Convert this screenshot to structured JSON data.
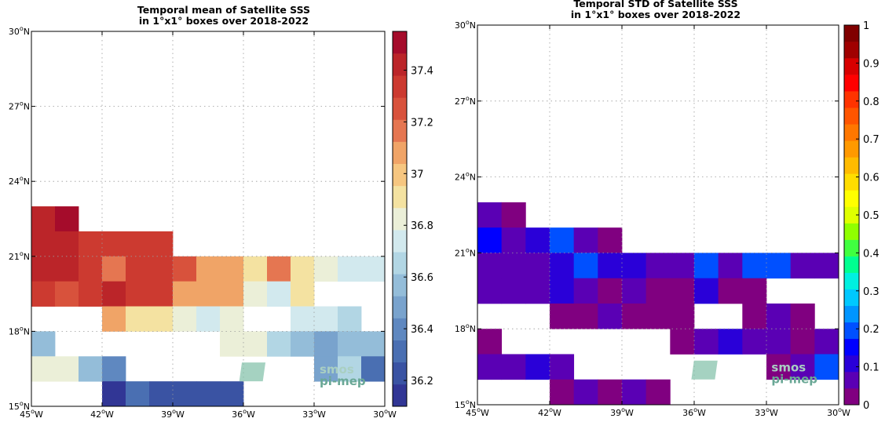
{
  "chart_data": [
    {
      "type": "heatmap",
      "title_lines": [
        "Temporal mean of Satellite SSS",
        "in 1°x1° boxes over 2018-2022"
      ],
      "x_ticks": [
        {
          "value": -45,
          "label": "45°W"
        },
        {
          "value": -42,
          "label": "42°W"
        },
        {
          "value": -39,
          "label": "39°W"
        },
        {
          "value": -36,
          "label": "36°W"
        },
        {
          "value": -33,
          "label": "33°W"
        },
        {
          "value": -30,
          "label": "30°W"
        }
      ],
      "y_ticks": [
        {
          "value": 15,
          "label": "15°N"
        },
        {
          "value": 18,
          "label": "18°N"
        },
        {
          "value": 21,
          "label": "21°N"
        },
        {
          "value": 24,
          "label": "24°N"
        },
        {
          "value": 27,
          "label": "27°N"
        },
        {
          "value": 30,
          "label": "30°N"
        }
      ],
      "xlim": [
        -45,
        -30
      ],
      "ylim": [
        15,
        30
      ],
      "colorbar": {
        "vmin": 36.1,
        "vmax": 37.55,
        "ticks": [
          36.2,
          36.4,
          36.6,
          36.8,
          37,
          37.2,
          37.4
        ],
        "tick_labels": [
          "36.2",
          "36.4",
          "36.6",
          "36.8",
          "37",
          "37.2",
          "37.4"
        ],
        "colors": [
          "#313695",
          "#3a53a3",
          "#4a6fb2",
          "#5f88c0",
          "#79a3cd",
          "#94bdd9",
          "#b2d6e4",
          "#d2e9ee",
          "#ebefd8",
          "#f4e2a1",
          "#f6c680",
          "#f0a467",
          "#e57651",
          "#d8523c",
          "#cc3a30",
          "#bb2529",
          "#a50c2b"
        ]
      },
      "grid": true,
      "cells": [
        {
          "lon": -45,
          "lat": 22,
          "value": 37.45
        },
        {
          "lon": -44,
          "lat": 22,
          "value": 37.5
        },
        {
          "lon": -45,
          "lat": 21,
          "value": 37.4
        },
        {
          "lon": -44,
          "lat": 21,
          "value": 37.45
        },
        {
          "lon": -43,
          "lat": 21,
          "value": 37.35
        },
        {
          "lon": -42,
          "lat": 21,
          "value": 37.35
        },
        {
          "lon": -41,
          "lat": 21,
          "value": 37.3
        },
        {
          "lon": -40,
          "lat": 21,
          "value": 37.3
        },
        {
          "lon": -45,
          "lat": 20,
          "value": 37.45
        },
        {
          "lon": -44,
          "lat": 20,
          "value": 37.4
        },
        {
          "lon": -43,
          "lat": 20,
          "value": 37.3
        },
        {
          "lon": -42,
          "lat": 20,
          "value": 37.2
        },
        {
          "lon": -41,
          "lat": 20,
          "value": 37.3
        },
        {
          "lon": -40,
          "lat": 20,
          "value": 37.3
        },
        {
          "lon": -39,
          "lat": 20,
          "value": 37.25
        },
        {
          "lon": -38,
          "lat": 20,
          "value": 37.12
        },
        {
          "lon": -37,
          "lat": 20,
          "value": 37.05
        },
        {
          "lon": -36,
          "lat": 20,
          "value": 36.95
        },
        {
          "lon": -35,
          "lat": 20,
          "value": 37.15
        },
        {
          "lon": -34,
          "lat": 20,
          "value": 36.95
        },
        {
          "lon": -33,
          "lat": 20,
          "value": 36.85
        },
        {
          "lon": -32,
          "lat": 20,
          "value": 36.75
        },
        {
          "lon": -31,
          "lat": 20,
          "value": 36.75
        },
        {
          "lon": -45,
          "lat": 19,
          "value": 37.3
        },
        {
          "lon": -44,
          "lat": 19,
          "value": 37.25
        },
        {
          "lon": -43,
          "lat": 19,
          "value": 37.3
        },
        {
          "lon": -42,
          "lat": 19,
          "value": 37.45
        },
        {
          "lon": -41,
          "lat": 19,
          "value": 37.35
        },
        {
          "lon": -40,
          "lat": 19,
          "value": 37.3
        },
        {
          "lon": -39,
          "lat": 19,
          "value": 37.05
        },
        {
          "lon": -38,
          "lat": 19,
          "value": 37.05
        },
        {
          "lon": -37,
          "lat": 19,
          "value": 37.05
        },
        {
          "lon": -36,
          "lat": 19,
          "value": 36.85
        },
        {
          "lon": -35,
          "lat": 19,
          "value": 36.75
        },
        {
          "lon": -34,
          "lat": 19,
          "value": 36.95
        },
        {
          "lon": -42,
          "lat": 18,
          "value": 37.05
        },
        {
          "lon": -41,
          "lat": 18,
          "value": 36.95
        },
        {
          "lon": -40,
          "lat": 18,
          "value": 36.9
        },
        {
          "lon": -39,
          "lat": 18,
          "value": 36.85
        },
        {
          "lon": -38,
          "lat": 18,
          "value": 36.75
        },
        {
          "lon": -37,
          "lat": 18,
          "value": 36.85
        },
        {
          "lon": -34,
          "lat": 18,
          "value": 36.75
        },
        {
          "lon": -33,
          "lat": 18,
          "value": 36.75
        },
        {
          "lon": -32,
          "lat": 18,
          "value": 36.65
        },
        {
          "lon": -45,
          "lat": 17,
          "value": 36.6
        },
        {
          "lon": -37,
          "lat": 17,
          "value": 36.85
        },
        {
          "lon": -36,
          "lat": 17,
          "value": 36.85
        },
        {
          "lon": -35,
          "lat": 17,
          "value": 36.65
        },
        {
          "lon": -34,
          "lat": 17,
          "value": 36.6
        },
        {
          "lon": -33,
          "lat": 17,
          "value": 36.5
        },
        {
          "lon": -32,
          "lat": 17,
          "value": 36.55
        },
        {
          "lon": -31,
          "lat": 17,
          "value": 36.55
        },
        {
          "lon": -45,
          "lat": 16,
          "value": 36.85
        },
        {
          "lon": -44,
          "lat": 16,
          "value": 36.85
        },
        {
          "lon": -43,
          "lat": 16,
          "value": 36.6
        },
        {
          "lon": -42,
          "lat": 16,
          "value": 36.4
        },
        {
          "lon": -33,
          "lat": 16,
          "value": 36.45
        },
        {
          "lon": -32,
          "lat": 16,
          "value": 36.65
        },
        {
          "lon": -31,
          "lat": 16,
          "value": 36.3
        },
        {
          "lon": -42,
          "lat": 15,
          "value": 36.15
        },
        {
          "lon": -41,
          "lat": 15,
          "value": 36.3
        },
        {
          "lon": -40,
          "lat": 15,
          "value": 36.2
        },
        {
          "lon": -39,
          "lat": 15,
          "value": 36.2
        },
        {
          "lon": -38,
          "lat": 15,
          "value": 36.2
        },
        {
          "lon": -37,
          "lat": 15,
          "value": 36.2
        }
      ],
      "logo": {
        "line1": "smos",
        "line2": "pi-mep"
      }
    },
    {
      "type": "heatmap",
      "title_lines": [
        "Temporal STD of Satellite SSS",
        "in 1°x1° boxes over 2018-2022"
      ],
      "x_ticks": [
        {
          "value": -45,
          "label": "45°W"
        },
        {
          "value": -42,
          "label": "42°W"
        },
        {
          "value": -39,
          "label": "39°W"
        },
        {
          "value": -36,
          "label": "36°W"
        },
        {
          "value": -33,
          "label": "33°W"
        },
        {
          "value": -30,
          "label": "30°W"
        }
      ],
      "y_ticks": [
        {
          "value": 15,
          "label": "15°N"
        },
        {
          "value": 18,
          "label": "18°N"
        },
        {
          "value": 21,
          "label": "21°N"
        },
        {
          "value": 24,
          "label": "24°N"
        },
        {
          "value": 27,
          "label": "27°N"
        },
        {
          "value": 30,
          "label": "30°N"
        }
      ],
      "xlim": [
        -45,
        -30
      ],
      "ylim": [
        15,
        30
      ],
      "colorbar": {
        "vmin": 0,
        "vmax": 1,
        "ticks": [
          0,
          0.1,
          0.2,
          0.3,
          0.4,
          0.5,
          0.6,
          0.7,
          0.8,
          0.9,
          1
        ],
        "tick_labels": [
          "0",
          "0.1",
          "0.2",
          "0.3",
          "0.4",
          "0.5",
          "0.6",
          "0.7",
          "0.8",
          "0.9",
          "1"
        ],
        "colors": [
          "#800080",
          "#5a00b4",
          "#2a00d8",
          "#0000ff",
          "#0050ff",
          "#0095ff",
          "#00c8ff",
          "#00f0e0",
          "#00ff90",
          "#40ff40",
          "#90ff00",
          "#e0ff00",
          "#ffff00",
          "#ffdd00",
          "#ffbb00",
          "#ff9900",
          "#ff7700",
          "#ff5500",
          "#ff3300",
          "#ff0000",
          "#d80000",
          "#a00000",
          "#800000"
        ]
      },
      "grid": true,
      "cells": [
        {
          "lon": -45,
          "lat": 22,
          "value": 0.07
        },
        {
          "lon": -44,
          "lat": 22,
          "value": 0.03
        },
        {
          "lon": -45,
          "lat": 21,
          "value": 0.16
        },
        {
          "lon": -44,
          "lat": 21,
          "value": 0.08
        },
        {
          "lon": -43,
          "lat": 21,
          "value": 0.12
        },
        {
          "lon": -42,
          "lat": 21,
          "value": 0.18
        },
        {
          "lon": -41,
          "lat": 21,
          "value": 0.06
        },
        {
          "lon": -40,
          "lat": 21,
          "value": 0.03
        },
        {
          "lon": -45,
          "lat": 20,
          "value": 0.07
        },
        {
          "lon": -44,
          "lat": 20,
          "value": 0.07
        },
        {
          "lon": -43,
          "lat": 20,
          "value": 0.07
        },
        {
          "lon": -42,
          "lat": 20,
          "value": 0.12
        },
        {
          "lon": -41,
          "lat": 20,
          "value": 0.18
        },
        {
          "lon": -40,
          "lat": 20,
          "value": 0.12
        },
        {
          "lon": -39,
          "lat": 20,
          "value": 0.12
        },
        {
          "lon": -38,
          "lat": 20,
          "value": 0.07
        },
        {
          "lon": -37,
          "lat": 20,
          "value": 0.07
        },
        {
          "lon": -36,
          "lat": 20,
          "value": 0.18
        },
        {
          "lon": -35,
          "lat": 20,
          "value": 0.07
        },
        {
          "lon": -34,
          "lat": 20,
          "value": 0.18
        },
        {
          "lon": -33,
          "lat": 20,
          "value": 0.18
        },
        {
          "lon": -32,
          "lat": 20,
          "value": 0.07
        },
        {
          "lon": -31,
          "lat": 20,
          "value": 0.07
        },
        {
          "lon": -45,
          "lat": 19,
          "value": 0.07
        },
        {
          "lon": -44,
          "lat": 19,
          "value": 0.07
        },
        {
          "lon": -43,
          "lat": 19,
          "value": 0.07
        },
        {
          "lon": -42,
          "lat": 19,
          "value": 0.12
        },
        {
          "lon": -41,
          "lat": 19,
          "value": 0.07
        },
        {
          "lon": -40,
          "lat": 19,
          "value": 0.03
        },
        {
          "lon": -39,
          "lat": 19,
          "value": 0.07
        },
        {
          "lon": -38,
          "lat": 19,
          "value": 0.03
        },
        {
          "lon": -37,
          "lat": 19,
          "value": 0.03
        },
        {
          "lon": -36,
          "lat": 19,
          "value": 0.12
        },
        {
          "lon": -35,
          "lat": 19,
          "value": 0.03
        },
        {
          "lon": -34,
          "lat": 19,
          "value": 0.03
        },
        {
          "lon": -42,
          "lat": 18,
          "value": 0.03
        },
        {
          "lon": -41,
          "lat": 18,
          "value": 0.03
        },
        {
          "lon": -40,
          "lat": 18,
          "value": 0.07
        },
        {
          "lon": -39,
          "lat": 18,
          "value": 0.03
        },
        {
          "lon": -38,
          "lat": 18,
          "value": 0.03
        },
        {
          "lon": -37,
          "lat": 18,
          "value": 0.03
        },
        {
          "lon": -34,
          "lat": 18,
          "value": 0.03
        },
        {
          "lon": -33,
          "lat": 18,
          "value": 0.07
        },
        {
          "lon": -32,
          "lat": 18,
          "value": 0.03
        },
        {
          "lon": -45,
          "lat": 17,
          "value": 0.03
        },
        {
          "lon": -37,
          "lat": 17,
          "value": 0.03
        },
        {
          "lon": -36,
          "lat": 17,
          "value": 0.07
        },
        {
          "lon": -35,
          "lat": 17,
          "value": 0.12
        },
        {
          "lon": -34,
          "lat": 17,
          "value": 0.07
        },
        {
          "lon": -33,
          "lat": 17,
          "value": 0.07
        },
        {
          "lon": -32,
          "lat": 17,
          "value": 0.03
        },
        {
          "lon": -31,
          "lat": 17,
          "value": 0.07
        },
        {
          "lon": -45,
          "lat": 16,
          "value": 0.07
        },
        {
          "lon": -44,
          "lat": 16,
          "value": 0.07
        },
        {
          "lon": -43,
          "lat": 16,
          "value": 0.12
        },
        {
          "lon": -42,
          "lat": 16,
          "value": 0.07
        },
        {
          "lon": -33,
          "lat": 16,
          "value": 0.03
        },
        {
          "lon": -32,
          "lat": 16,
          "value": 0.07
        },
        {
          "lon": -31,
          "lat": 16,
          "value": 0.18
        },
        {
          "lon": -42,
          "lat": 15,
          "value": 0.03
        },
        {
          "lon": -41,
          "lat": 15,
          "value": 0.07
        },
        {
          "lon": -40,
          "lat": 15,
          "value": 0.03
        },
        {
          "lon": -39,
          "lat": 15,
          "value": 0.07
        },
        {
          "lon": -38,
          "lat": 15,
          "value": 0.03
        }
      ],
      "logo": {
        "line1": "smos",
        "line2": "pi-mep"
      }
    }
  ]
}
